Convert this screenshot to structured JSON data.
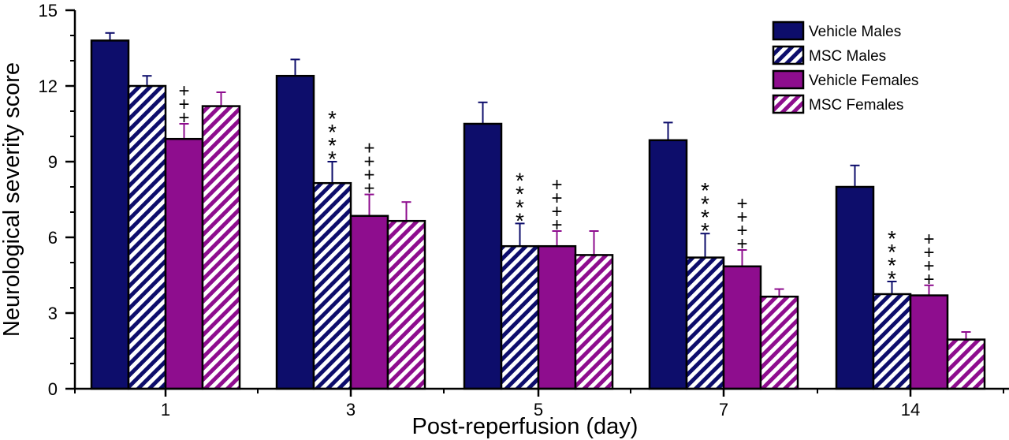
{
  "chart_data": {
    "type": "bar",
    "title": "",
    "xlabel": "Post-reperfusion (day)",
    "ylabel": "Neurological severity score",
    "ylim": [
      0,
      15
    ],
    "yticks": [
      0,
      3,
      6,
      9,
      12,
      15
    ],
    "grid": false,
    "legend_position": "top-right",
    "categories": [
      "1",
      "3",
      "5",
      "7",
      "14"
    ],
    "series": [
      {
        "name": "Vehicle Males",
        "color": "#0d0d6b",
        "pattern": "solid",
        "values": [
          13.8,
          12.4,
          10.5,
          9.85,
          8.0
        ],
        "errors": [
          0.3,
          0.65,
          0.85,
          0.7,
          0.85
        ],
        "annotations": [
          "",
          "",
          "",
          "",
          ""
        ]
      },
      {
        "name": "MSC Males",
        "color": "#0d0d6b",
        "pattern": "hatched",
        "values": [
          12.0,
          8.15,
          5.65,
          5.2,
          3.75
        ],
        "errors": [
          0.4,
          0.85,
          0.9,
          0.95,
          0.5
        ],
        "annotations": [
          "",
          "****",
          "****",
          "****",
          "****"
        ]
      },
      {
        "name": "Vehicle Females",
        "color": "#8e0d8e",
        "pattern": "solid",
        "values": [
          9.9,
          6.85,
          5.65,
          4.85,
          3.7
        ],
        "errors": [
          0.6,
          0.85,
          0.6,
          0.65,
          0.4
        ],
        "annotations": [
          "+++",
          "++++",
          "++++",
          "++++",
          "++++"
        ]
      },
      {
        "name": "MSC Females",
        "color": "#8e0d8e",
        "pattern": "hatched",
        "values": [
          11.2,
          6.65,
          5.3,
          3.65,
          1.95
        ],
        "errors": [
          0.55,
          0.75,
          0.95,
          0.3,
          0.3
        ],
        "annotations": [
          "",
          "",
          "",
          "",
          ""
        ]
      }
    ]
  }
}
